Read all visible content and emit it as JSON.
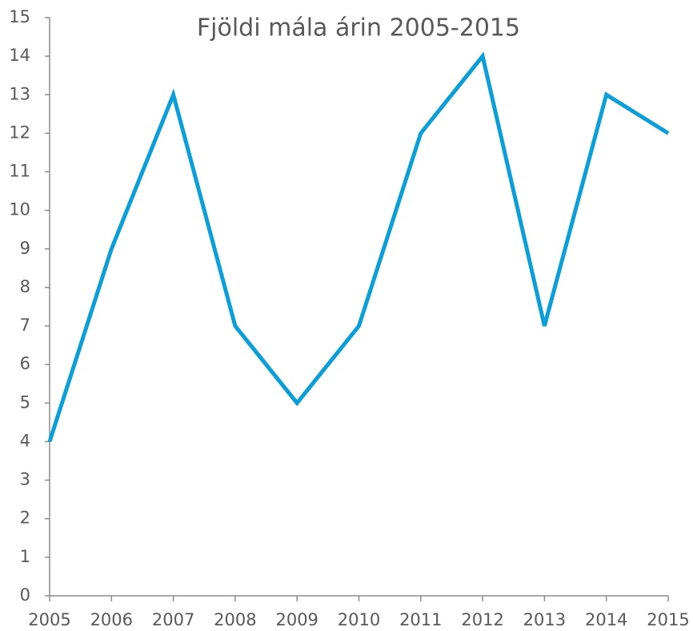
{
  "chart_data": {
    "type": "line",
    "title": "Fjöldi mála árin 2005-2015",
    "x": [
      2005,
      2006,
      2007,
      2008,
      2009,
      2010,
      2011,
      2012,
      2013,
      2014,
      2015
    ],
    "series": [
      {
        "color": "#0a9fd8",
        "values": [
          4,
          9,
          13,
          7,
          5,
          7,
          12,
          14,
          7,
          13,
          12
        ]
      }
    ],
    "xlim": [
      2005,
      2015
    ],
    "xticks": [
      2005,
      2006,
      2007,
      2008,
      2009,
      2010,
      2011,
      2012,
      2013,
      2014,
      2015
    ],
    "ylim": [
      0,
      15
    ],
    "yticks": [
      0,
      1,
      2,
      3,
      4,
      5,
      6,
      7,
      8,
      9,
      10,
      11,
      12,
      13,
      14,
      15
    ]
  }
}
